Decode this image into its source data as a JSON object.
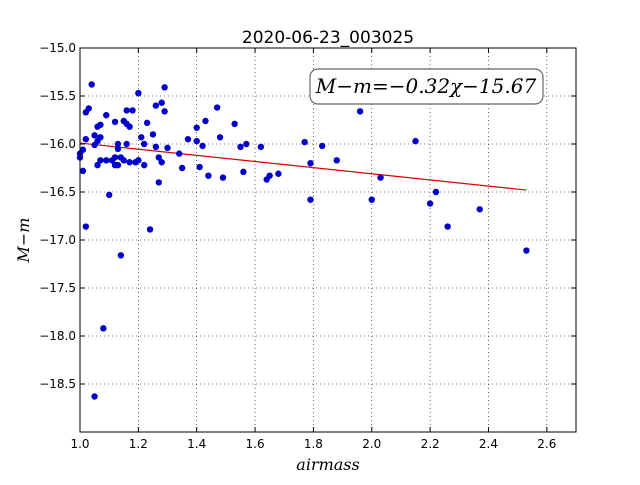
{
  "chart_data": {
    "type": "scatter",
    "title": "2020-06-23_003025",
    "xlabel": "airmass",
    "ylabel": "M−m",
    "xlim": [
      1.0,
      2.7
    ],
    "ylim": [
      -19.0,
      -15.0
    ],
    "y_inverted": true,
    "grid": true,
    "x_ticks": [
      "1.0",
      "1.2",
      "1.4",
      "1.6",
      "1.8",
      "2.0",
      "2.2",
      "2.4",
      "2.6"
    ],
    "x_tick_values": [
      1.0,
      1.2,
      1.4,
      1.6,
      1.8,
      2.0,
      2.2,
      2.4,
      2.6
    ],
    "y_ticks": [
      "−15.0",
      "−15.5",
      "−16.0",
      "−16.5",
      "−17.0",
      "−17.5",
      "−18.0",
      "−18.5"
    ],
    "y_tick_values": [
      -15.0,
      -15.5,
      -16.0,
      -16.5,
      -17.0,
      -17.5,
      -18.0,
      -18.5
    ],
    "annotation": "M−m=−0.32χ−15.67",
    "point_color": "#0000cc",
    "fit_color": "#dd0000",
    "fit": {
      "slope": -0.32,
      "intercept": -15.67,
      "x_range": [
        1.0,
        2.53
      ]
    },
    "points": [
      [
        1.0,
        -16.1
      ],
      [
        1.0,
        -16.14
      ],
      [
        1.01,
        -16.06
      ],
      [
        1.01,
        -16.28
      ],
      [
        1.02,
        -15.67
      ],
      [
        1.02,
        -16.86
      ],
      [
        1.02,
        -15.95
      ],
      [
        1.03,
        -15.63
      ],
      [
        1.04,
        -15.38
      ],
      [
        1.05,
        -15.91
      ],
      [
        1.05,
        -16.01
      ],
      [
        1.05,
        -18.63
      ],
      [
        1.06,
        -15.82
      ],
      [
        1.06,
        -16.22
      ],
      [
        1.06,
        -15.97
      ],
      [
        1.07,
        -15.93
      ],
      [
        1.07,
        -16.17
      ],
      [
        1.07,
        -15.8
      ],
      [
        1.08,
        -17.92
      ],
      [
        1.09,
        -15.7
      ],
      [
        1.09,
        -16.17
      ],
      [
        1.1,
        -16.53
      ],
      [
        1.11,
        -16.17
      ],
      [
        1.12,
        -15.77
      ],
      [
        1.12,
        -16.14
      ],
      [
        1.12,
        -16.22
      ],
      [
        1.13,
        -16.05
      ],
      [
        1.13,
        -16.22
      ],
      [
        1.13,
        -16.0
      ],
      [
        1.14,
        -17.16
      ],
      [
        1.14,
        -16.14
      ],
      [
        1.15,
        -15.76
      ],
      [
        1.15,
        -16.17
      ],
      [
        1.16,
        -15.65
      ],
      [
        1.16,
        -16.0
      ],
      [
        1.16,
        -15.79
      ],
      [
        1.17,
        -15.82
      ],
      [
        1.17,
        -16.19
      ],
      [
        1.18,
        -15.65
      ],
      [
        1.19,
        -16.19
      ],
      [
        1.2,
        -15.47
      ],
      [
        1.2,
        -16.17
      ],
      [
        1.21,
        -15.93
      ],
      [
        1.22,
        -16.0
      ],
      [
        1.22,
        -16.22
      ],
      [
        1.23,
        -15.78
      ],
      [
        1.24,
        -16.89
      ],
      [
        1.25,
        -15.9
      ],
      [
        1.26,
        -15.6
      ],
      [
        1.26,
        -16.03
      ],
      [
        1.27,
        -16.14
      ],
      [
        1.27,
        -16.4
      ],
      [
        1.28,
        -15.57
      ],
      [
        1.28,
        -16.19
      ],
      [
        1.29,
        -15.41
      ],
      [
        1.29,
        -15.66
      ],
      [
        1.3,
        -16.04
      ],
      [
        1.34,
        -16.1
      ],
      [
        1.35,
        -16.25
      ],
      [
        1.37,
        -15.95
      ],
      [
        1.4,
        -15.83
      ],
      [
        1.4,
        -15.97
      ],
      [
        1.41,
        -16.24
      ],
      [
        1.42,
        -16.02
      ],
      [
        1.43,
        -15.76
      ],
      [
        1.44,
        -16.33
      ],
      [
        1.47,
        -15.62
      ],
      [
        1.48,
        -15.93
      ],
      [
        1.49,
        -16.35
      ],
      [
        1.53,
        -15.79
      ],
      [
        1.55,
        -16.03
      ],
      [
        1.56,
        -16.29
      ],
      [
        1.57,
        -16.0
      ],
      [
        1.62,
        -16.03
      ],
      [
        1.64,
        -16.37
      ],
      [
        1.65,
        -16.33
      ],
      [
        1.68,
        -16.31
      ],
      [
        1.77,
        -15.98
      ],
      [
        1.79,
        -16.2
      ],
      [
        1.79,
        -16.58
      ],
      [
        1.83,
        -16.02
      ],
      [
        1.88,
        -16.17
      ],
      [
        1.96,
        -15.66
      ],
      [
        2.0,
        -16.58
      ],
      [
        2.03,
        -16.35
      ],
      [
        2.15,
        -15.97
      ],
      [
        2.2,
        -16.62
      ],
      [
        2.22,
        -16.5
      ],
      [
        2.26,
        -16.86
      ],
      [
        2.37,
        -16.68
      ],
      [
        2.53,
        -17.11
      ]
    ]
  }
}
